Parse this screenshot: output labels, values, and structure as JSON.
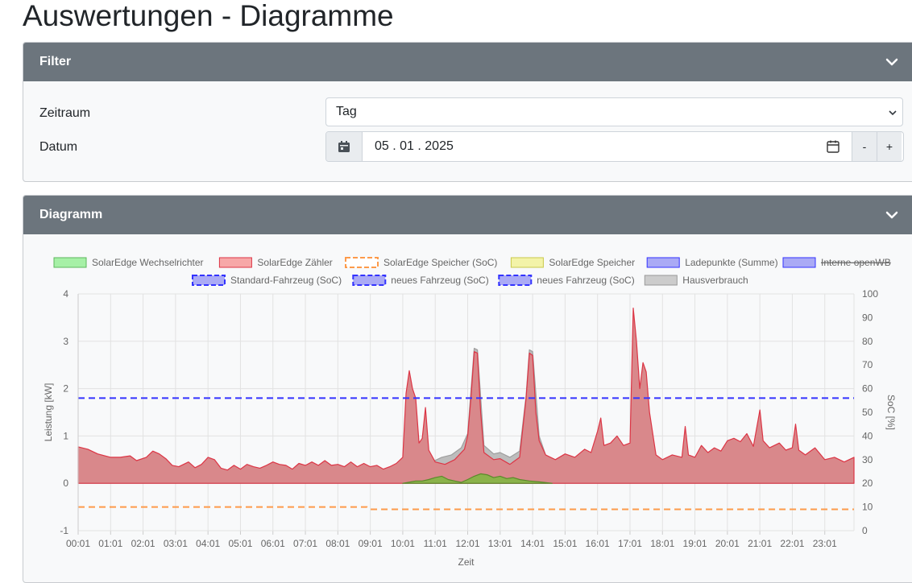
{
  "page": {
    "title": "Auswertungen - Diagramme"
  },
  "filter": {
    "header": "Filter",
    "zeitraum_label": "Zeitraum",
    "zeitraum_value": "Tag",
    "datum_label": "Datum",
    "datum_value": "05 . 01 . 2025",
    "minus_label": "-",
    "plus_label": "+"
  },
  "diagramm": {
    "header": "Diagramm"
  },
  "colors": {
    "header_bg": "#6c757d",
    "zaehler": "#d9888b",
    "zaehler_line": "#dc3545",
    "haus": "#bdbdbd",
    "pv": "#8bb24a",
    "soc": "#fd9a4a",
    "ev": "#3333ff"
  },
  "chart_data": {
    "type": "area",
    "xlabel": "Zeit",
    "ylabel": "Leistung [kW]",
    "y2label": "SoC [%]",
    "ylim": [
      -1,
      4
    ],
    "y2lim": [
      0,
      100
    ],
    "yticks": [
      "4",
      "3",
      "2",
      "1",
      "0",
      "-1"
    ],
    "y2ticks": [
      "100",
      "90",
      "80",
      "70",
      "60",
      "50",
      "40",
      "30",
      "20",
      "10",
      "0"
    ],
    "x_ticks": [
      "00:01",
      "01:01",
      "02:01",
      "03:01",
      "04:01",
      "05:01",
      "06:01",
      "07:01",
      "08:01",
      "09:01",
      "10:01",
      "11:01",
      "12:01",
      "13:01",
      "14:01",
      "15:01",
      "16:01",
      "17:01",
      "18:01",
      "19:01",
      "20:01",
      "21:01",
      "22:01",
      "23:01"
    ],
    "legend": [
      {
        "label": "SolarEdge Wechselrichter",
        "fill": "#a6f0a6",
        "stroke": "#5cb85c",
        "dashed": false,
        "hidden": false
      },
      {
        "label": "SolarEdge Zähler",
        "fill": "#f7a8a8",
        "stroke": "#dc3545",
        "dashed": false,
        "hidden": false
      },
      {
        "label": "SolarEdge Speicher (SoC)",
        "fill": "#ffffff",
        "stroke": "#fd9a4a",
        "dashed": true,
        "hidden": false
      },
      {
        "label": "SolarEdge Speicher",
        "fill": "#f3f3a8",
        "stroke": "#c9c94a",
        "dashed": false,
        "hidden": false
      },
      {
        "label": "Ladepunkte (Summe)",
        "fill": "#aaaaf5",
        "stroke": "#3333ff",
        "dashed": false,
        "hidden": false
      },
      {
        "label": "Interne openWB",
        "fill": "#aaaaf5",
        "stroke": "#3333ff",
        "dashed": false,
        "hidden": true
      },
      {
        "label": "Standard-Fahrzeug (SoC)",
        "fill": "#aaaaf5",
        "stroke": "#3333ff",
        "dashed": true,
        "hidden": false
      },
      {
        "label": "neues Fahrzeug (SoC)",
        "fill": "#aaaaf5",
        "stroke": "#3333ff",
        "dashed": true,
        "hidden": false
      },
      {
        "label": "neues Fahrzeug (SoC)",
        "fill": "#aaaaf5",
        "stroke": "#3333ff",
        "dashed": true,
        "hidden": false
      },
      {
        "label": "Hausverbrauch",
        "fill": "#cccccc",
        "stroke": "#999999",
        "dashed": false,
        "hidden": false
      }
    ],
    "series": [
      {
        "name": "SolarEdge Zähler",
        "axis": "kW",
        "points": [
          [
            0,
            0.77
          ],
          [
            0.3,
            0.72
          ],
          [
            0.6,
            0.62
          ],
          [
            1.0,
            0.55
          ],
          [
            1.3,
            0.55
          ],
          [
            1.6,
            0.58
          ],
          [
            1.8,
            0.48
          ],
          [
            2.1,
            0.55
          ],
          [
            2.3,
            0.68
          ],
          [
            2.5,
            0.62
          ],
          [
            2.7,
            0.52
          ],
          [
            2.9,
            0.38
          ],
          [
            3.1,
            0.35
          ],
          [
            3.4,
            0.45
          ],
          [
            3.6,
            0.33
          ],
          [
            3.8,
            0.4
          ],
          [
            4.0,
            0.55
          ],
          [
            4.2,
            0.5
          ],
          [
            4.4,
            0.32
          ],
          [
            4.6,
            0.28
          ],
          [
            4.8,
            0.38
          ],
          [
            5.0,
            0.3
          ],
          [
            5.2,
            0.4
          ],
          [
            5.4,
            0.35
          ],
          [
            5.6,
            0.32
          ],
          [
            5.8,
            0.38
          ],
          [
            6.0,
            0.45
          ],
          [
            6.2,
            0.4
          ],
          [
            6.4,
            0.38
          ],
          [
            6.6,
            0.3
          ],
          [
            6.8,
            0.42
          ],
          [
            7.0,
            0.38
          ],
          [
            7.2,
            0.45
          ],
          [
            7.4,
            0.38
          ],
          [
            7.6,
            0.48
          ],
          [
            7.8,
            0.38
          ],
          [
            8.0,
            0.4
          ],
          [
            8.2,
            0.35
          ],
          [
            8.4,
            0.45
          ],
          [
            8.6,
            0.35
          ],
          [
            8.8,
            0.42
          ],
          [
            9.0,
            0.35
          ],
          [
            9.2,
            0.38
          ],
          [
            9.4,
            0.3
          ],
          [
            9.6,
            0.35
          ],
          [
            9.8,
            0.42
          ],
          [
            10.0,
            0.55
          ],
          [
            10.1,
            1.9
          ],
          [
            10.2,
            2.38
          ],
          [
            10.3,
            2.0
          ],
          [
            10.4,
            1.8
          ],
          [
            10.5,
            0.85
          ],
          [
            10.6,
            0.95
          ],
          [
            10.7,
            1.6
          ],
          [
            10.8,
            0.7
          ],
          [
            11.0,
            0.45
          ],
          [
            11.3,
            0.4
          ],
          [
            11.6,
            0.5
          ],
          [
            11.9,
            0.72
          ],
          [
            12.0,
            1.0
          ],
          [
            12.1,
            1.8
          ],
          [
            12.2,
            2.78
          ],
          [
            12.3,
            2.75
          ],
          [
            12.4,
            1.5
          ],
          [
            12.5,
            0.65
          ],
          [
            12.8,
            0.5
          ],
          [
            13.0,
            0.52
          ],
          [
            13.3,
            0.4
          ],
          [
            13.6,
            0.55
          ],
          [
            13.8,
            1.8
          ],
          [
            13.9,
            2.75
          ],
          [
            14.0,
            2.7
          ],
          [
            14.1,
            1.5
          ],
          [
            14.2,
            0.9
          ],
          [
            14.4,
            0.6
          ],
          [
            14.7,
            0.5
          ],
          [
            15.0,
            0.62
          ],
          [
            15.3,
            0.55
          ],
          [
            15.6,
            0.72
          ],
          [
            15.8,
            0.65
          ],
          [
            16.0,
            1.1
          ],
          [
            16.1,
            1.38
          ],
          [
            16.2,
            0.8
          ],
          [
            16.4,
            0.85
          ],
          [
            16.6,
            1.0
          ],
          [
            16.8,
            0.8
          ],
          [
            17.0,
            0.85
          ],
          [
            17.1,
            3.7
          ],
          [
            17.2,
            3.0
          ],
          [
            17.3,
            2.0
          ],
          [
            17.4,
            2.55
          ],
          [
            17.5,
            2.35
          ],
          [
            17.6,
            1.5
          ],
          [
            17.8,
            0.6
          ],
          [
            18.0,
            0.5
          ],
          [
            18.3,
            0.6
          ],
          [
            18.6,
            0.55
          ],
          [
            18.7,
            1.2
          ],
          [
            18.8,
            0.6
          ],
          [
            19.0,
            0.55
          ],
          [
            19.2,
            0.8
          ],
          [
            19.4,
            0.65
          ],
          [
            19.6,
            0.75
          ],
          [
            19.8,
            0.68
          ],
          [
            20.0,
            0.9
          ],
          [
            20.2,
            0.95
          ],
          [
            20.4,
            0.88
          ],
          [
            20.6,
            1.05
          ],
          [
            20.8,
            0.78
          ],
          [
            21.0,
            1.55
          ],
          [
            21.1,
            0.9
          ],
          [
            21.3,
            0.75
          ],
          [
            21.6,
            0.85
          ],
          [
            21.8,
            0.7
          ],
          [
            22.0,
            0.75
          ],
          [
            22.1,
            1.25
          ],
          [
            22.2,
            0.7
          ],
          [
            22.4,
            0.6
          ],
          [
            22.7,
            0.75
          ],
          [
            23.0,
            0.5
          ],
          [
            23.3,
            0.55
          ],
          [
            23.6,
            0.45
          ],
          [
            23.9,
            0.55
          ]
        ]
      },
      {
        "name": "Hausverbrauch",
        "axis": "kW",
        "points": [
          [
            10.7,
            0.05
          ],
          [
            10.9,
            0.45
          ],
          [
            11.2,
            0.55
          ],
          [
            11.5,
            0.6
          ],
          [
            11.8,
            0.75
          ],
          [
            12.0,
            1.05
          ],
          [
            12.2,
            2.85
          ],
          [
            12.3,
            2.82
          ],
          [
            12.5,
            0.8
          ],
          [
            12.8,
            0.62
          ],
          [
            13.0,
            0.65
          ],
          [
            13.3,
            0.55
          ],
          [
            13.6,
            0.68
          ],
          [
            13.8,
            1.85
          ],
          [
            13.9,
            2.82
          ],
          [
            14.0,
            2.78
          ],
          [
            14.2,
            1.0
          ],
          [
            14.4,
            0.6
          ]
        ]
      },
      {
        "name": "SolarEdge Wechselrichter",
        "axis": "kW",
        "points": [
          [
            10.0,
            0
          ],
          [
            10.4,
            0.05
          ],
          [
            10.6,
            0.05
          ],
          [
            10.8,
            0.08
          ],
          [
            11.0,
            0.12
          ],
          [
            11.2,
            0.15
          ],
          [
            11.4,
            0.08
          ],
          [
            11.6,
            0.05
          ],
          [
            11.8,
            0.02
          ],
          [
            12.0,
            0.08
          ],
          [
            12.2,
            0.15
          ],
          [
            12.4,
            0.2
          ],
          [
            12.6,
            0.18
          ],
          [
            12.8,
            0.12
          ],
          [
            13.0,
            0.15
          ],
          [
            13.2,
            0.1
          ],
          [
            13.4,
            0.12
          ],
          [
            13.6,
            0.08
          ],
          [
            13.9,
            0.05
          ],
          [
            14.2,
            0.03
          ],
          [
            14.6,
            0.0
          ]
        ]
      },
      {
        "name": "SolarEdge Speicher (SoC)",
        "axis": "soc",
        "points": [
          [
            0,
            10
          ],
          [
            8.9,
            10
          ],
          [
            9.0,
            9
          ],
          [
            23.9,
            9
          ]
        ]
      },
      {
        "name": "Standard-Fahrzeug (SoC)",
        "axis": "soc",
        "points": [
          [
            0,
            56
          ],
          [
            23.9,
            56
          ]
        ]
      }
    ]
  }
}
